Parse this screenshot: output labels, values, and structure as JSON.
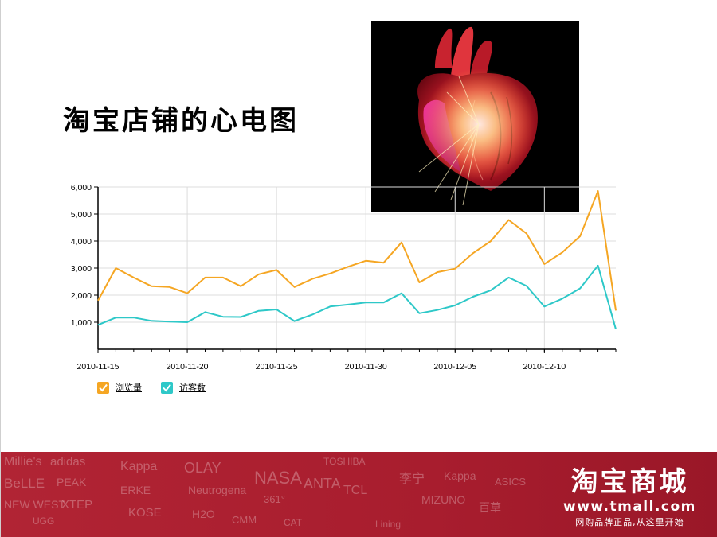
{
  "slide": {
    "title": "淘宝店铺的心电图"
  },
  "chart_data": {
    "type": "line",
    "x": [
      "2010-11-15",
      "2010-11-16",
      "2010-11-17",
      "2010-11-18",
      "2010-11-19",
      "2010-11-20",
      "2010-11-21",
      "2010-11-22",
      "2010-11-23",
      "2010-11-24",
      "2010-11-25",
      "2010-11-26",
      "2010-11-27",
      "2010-11-28",
      "2010-11-29",
      "2010-11-30",
      "2010-12-01",
      "2010-12-02",
      "2010-12-03",
      "2010-12-04",
      "2010-12-05",
      "2010-12-06",
      "2010-12-07",
      "2010-12-08",
      "2010-12-09",
      "2010-12-10",
      "2010-12-11",
      "2010-12-12",
      "2010-12-13",
      "2010-12-14"
    ],
    "x_tick_labels": [
      "2010-11-15",
      "2010-11-20",
      "2010-11-25",
      "2010-11-30",
      "2010-12-05",
      "2010-12-10"
    ],
    "y_tick_labels": [
      "1,000",
      "2,000",
      "3,000",
      "4,000",
      "5,000",
      "6,000"
    ],
    "y_ticks": [
      1000,
      2000,
      3000,
      4000,
      5000,
      6000
    ],
    "ylim": [
      0,
      6000
    ],
    "series": [
      {
        "name": "浏览量",
        "color": "#f5a623",
        "values": [
          1800,
          3000,
          2650,
          2330,
          2300,
          2070,
          2650,
          2650,
          2330,
          2770,
          2930,
          2300,
          2600,
          2800,
          3050,
          3270,
          3200,
          3950,
          2470,
          2850,
          2980,
          3550,
          4000,
          4780,
          4280,
          3150,
          3580,
          4180,
          5850,
          1430
        ]
      },
      {
        "name": "访客数",
        "color": "#2ec8c8",
        "values": [
          900,
          1170,
          1170,
          1050,
          1020,
          1000,
          1370,
          1200,
          1190,
          1420,
          1470,
          1040,
          1280,
          1580,
          1650,
          1730,
          1730,
          2070,
          1330,
          1450,
          1620,
          1940,
          2180,
          2650,
          2340,
          1580,
          1870,
          2250,
          3090,
          740
        ]
      }
    ],
    "grid": true,
    "legend": "bottom-left"
  },
  "icons": {
    "heart": "anatomical-heart-image",
    "legend_check": "checkbox-checked-icon"
  },
  "footer": {
    "logo_main": "淘宝商城",
    "logo_url": "www.tmall.com",
    "slogan": "网购品牌正品,从这里开始",
    "background_color": "#a51d2d",
    "brands": [
      "Millie's",
      "BeLLE",
      "NEW WEST",
      "UGG",
      "adidas",
      "PEAK",
      "XTEP",
      "Kappa",
      "ERKE",
      "KOSE",
      "OLAY",
      "Neutrogena",
      "H2O",
      "CMM",
      "NASA",
      "361°",
      "CAT",
      "ANTA",
      "TOSHIBA",
      "TCL",
      "Lining",
      "李宁",
      "MIZUNO",
      "Kappa",
      "百草",
      "ASICS"
    ]
  }
}
